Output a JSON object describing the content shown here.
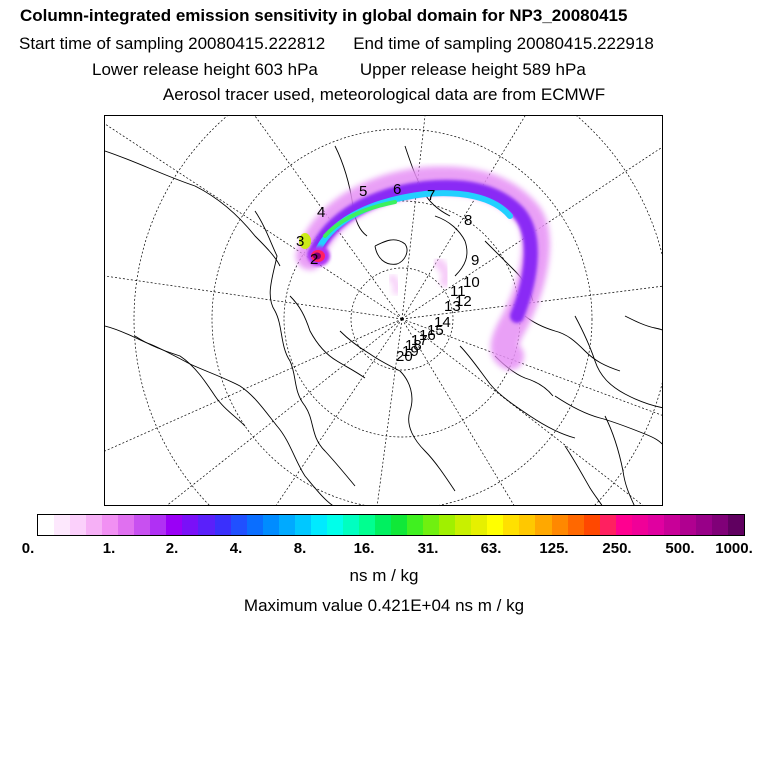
{
  "header": {
    "title": "Column-integrated emission sensitivity in global domain for NP3_20080415",
    "start_label": "Start time of sampling 20080415.222812",
    "end_label": "End time of sampling 20080415.222918",
    "lower_label": "Lower release height  603 hPa",
    "upper_label": "Upper release height  589 hPa",
    "tracer_label": "Aerosol tracer used, meteorological data are from ECMWF"
  },
  "map": {
    "projection": "north-polar-stereographic",
    "day_markers": [
      "2",
      "3",
      "4",
      "5",
      "6",
      "7",
      "8",
      "9",
      "10",
      "11",
      "12",
      "13",
      "14",
      "15",
      "16",
      "17",
      "18",
      "19",
      "20"
    ]
  },
  "colorbar": {
    "colors": [
      "#ffffff",
      "#fde8fd",
      "#fbd0fb",
      "#f6b0f6",
      "#f190f3",
      "#e070f0",
      "#c850f0",
      "#b030f4",
      "#9a00f6",
      "#7a10f8",
      "#5a20fa",
      "#3a30fc",
      "#2050ff",
      "#0a6eff",
      "#008cff",
      "#00aaff",
      "#00c8ff",
      "#00eaff",
      "#00ffea",
      "#00ffc0",
      "#00ff90",
      "#00f060",
      "#10e838",
      "#40f020",
      "#70f010",
      "#a0f000",
      "#c8f000",
      "#e6f000",
      "#ffff00",
      "#ffe000",
      "#ffc800",
      "#ffa800",
      "#ff8800",
      "#ff6800",
      "#ff4800",
      "#ff2060",
      "#ff0090",
      "#f00098",
      "#e000a0",
      "#c80098",
      "#b00090",
      "#980088",
      "#800078",
      "#600060"
    ],
    "tick_labels": [
      "0.",
      "1.",
      "2.",
      "4.",
      "8.",
      "16.",
      "31.",
      "63.",
      "125.",
      "250.",
      "500.",
      "1000."
    ],
    "units": "ns m / kg",
    "max_value_label": "Maximum value  0.421E+04 ns m / kg"
  }
}
